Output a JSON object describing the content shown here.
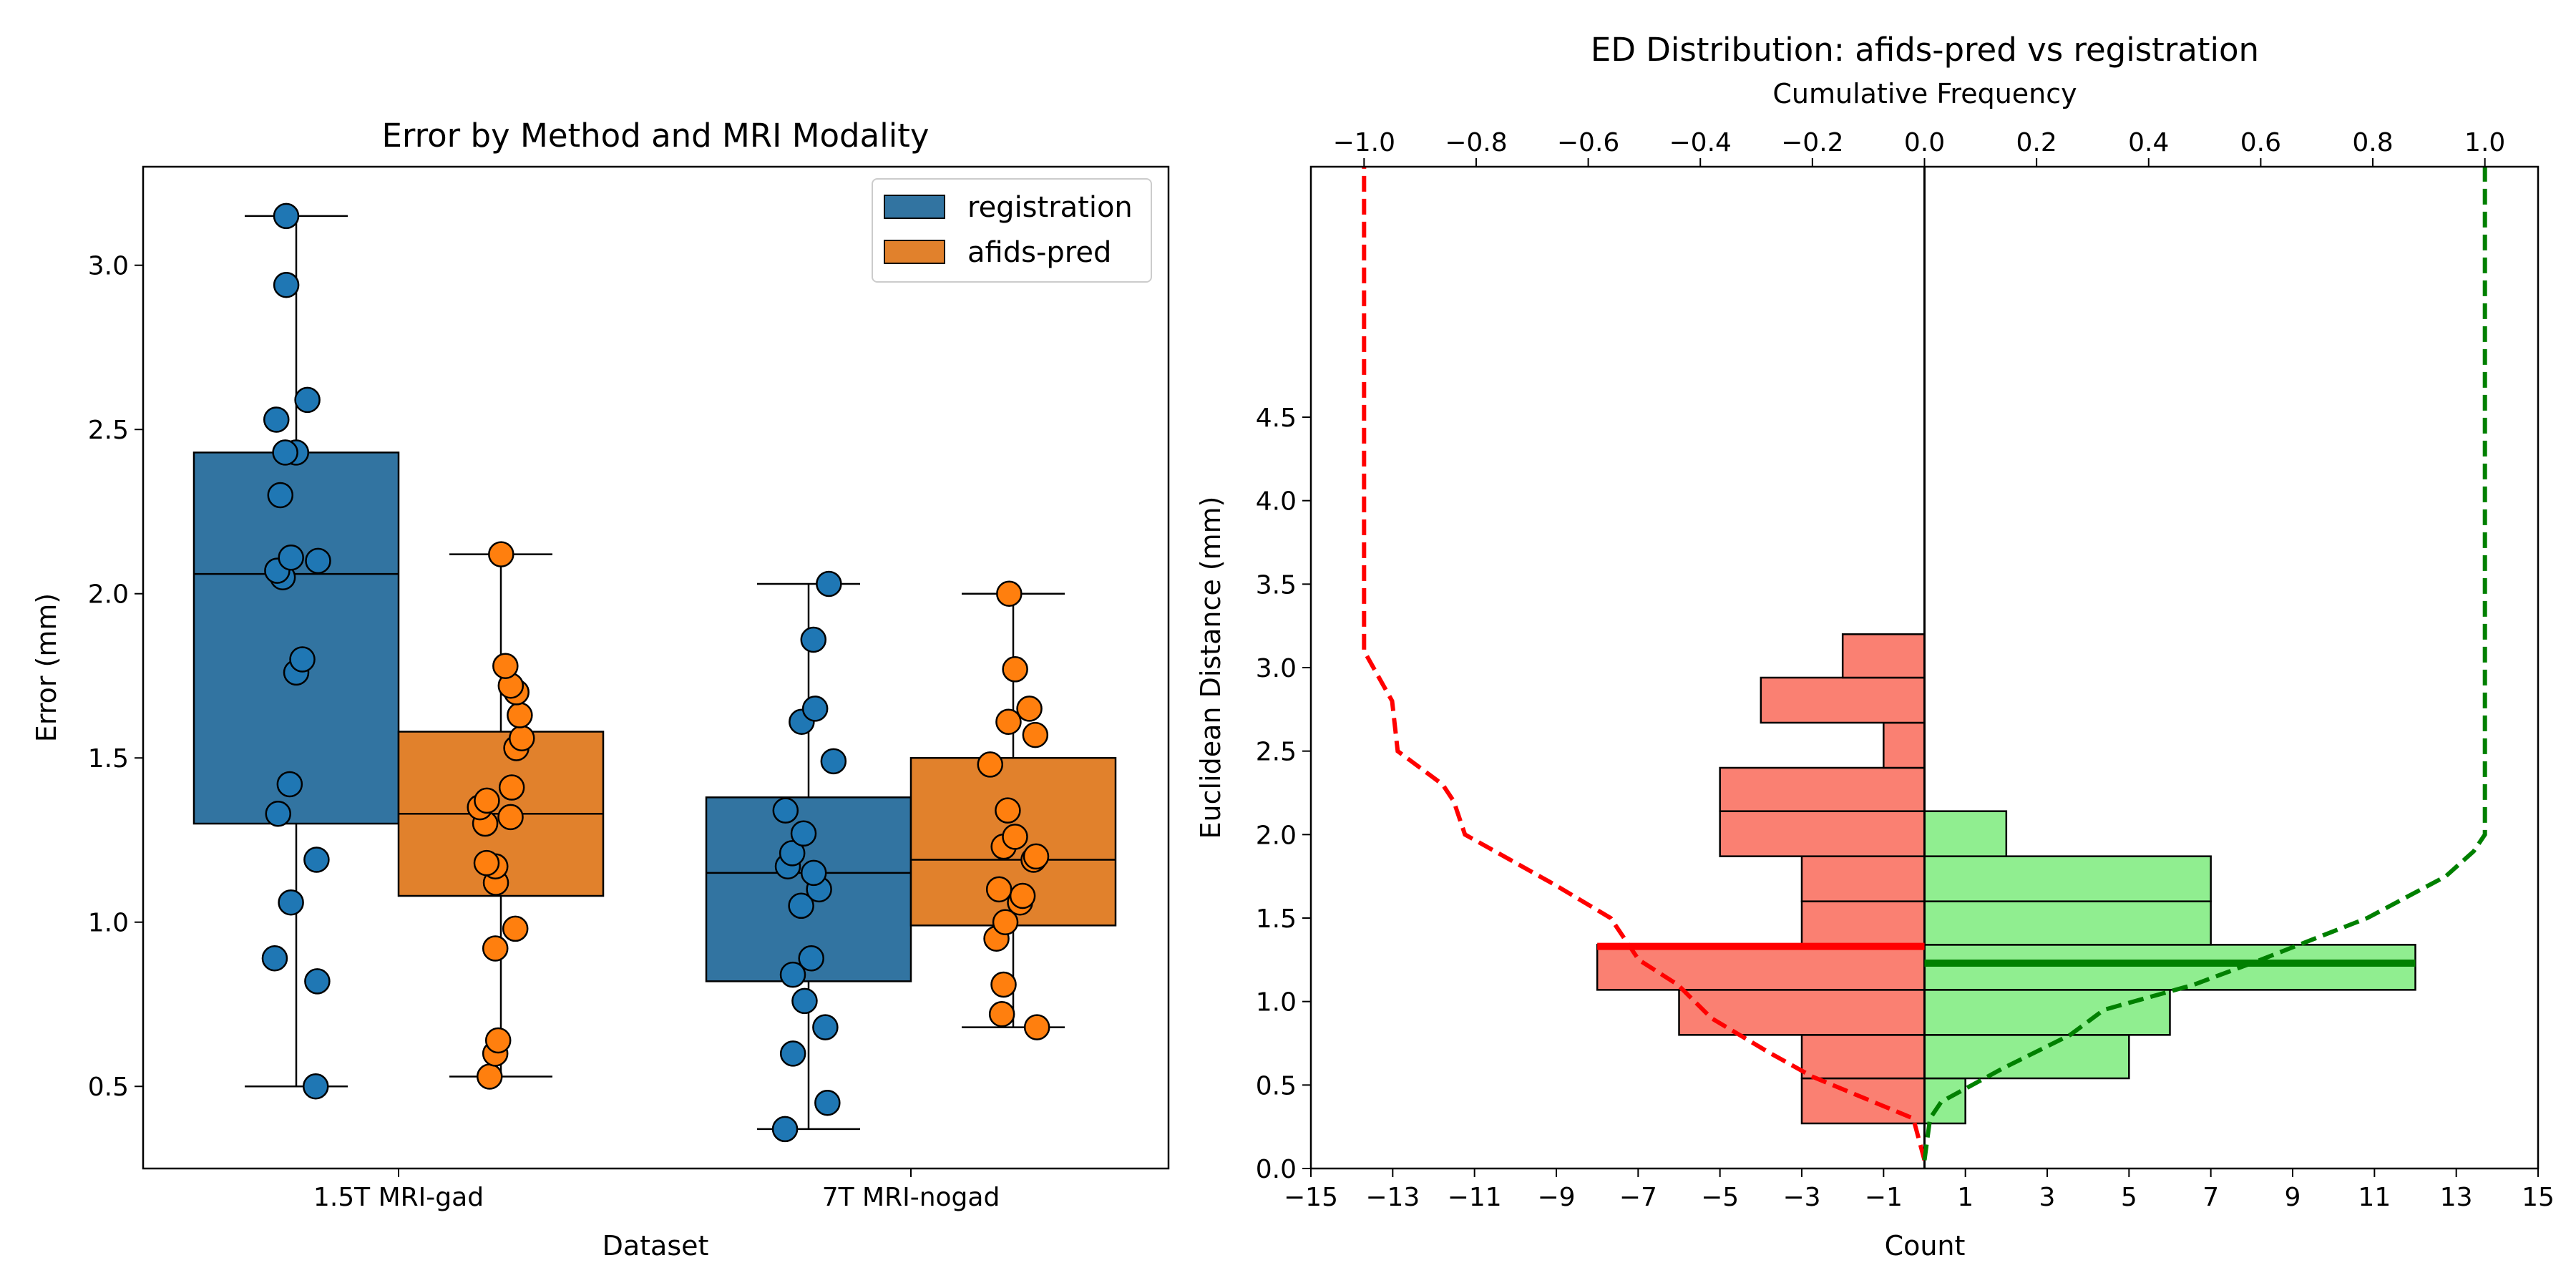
{
  "chart_data": [
    {
      "type": "box",
      "title": "Error by Method and MRI Modality",
      "xlabel": "Dataset",
      "ylabel": "Error (mm)",
      "ylim": [
        0.25,
        3.3
      ],
      "yticks": [
        0.5,
        1.0,
        1.5,
        2.0,
        2.5,
        3.0
      ],
      "ytick_labels": [
        "0.5",
        "1.0",
        "1.5",
        "2.0",
        "2.5",
        "3.0"
      ],
      "categories": [
        "1.5T MRI-gad",
        "7T MRI-nogad"
      ],
      "legend_position": "top-right",
      "series": [
        {
          "name": "registration",
          "color": "#3274a1",
          "point_color": "#1f77b4",
          "boxes": [
            {
              "whisker_low": 0.5,
              "q1": 1.3,
              "median": 2.06,
              "q3": 2.43,
              "whisker_high": 3.15
            },
            {
              "whisker_low": 0.37,
              "q1": 0.82,
              "median": 1.15,
              "q3": 1.38,
              "whisker_high": 2.03
            }
          ],
          "points": [
            [
              0.5,
              0.82,
              0.89,
              1.06,
              1.19,
              1.33,
              1.42,
              1.76,
              1.8,
              2.05,
              2.07,
              2.1,
              2.11,
              2.3,
              2.43,
              2.43,
              2.53,
              2.59,
              2.94,
              3.15
            ],
            [
              0.37,
              0.45,
              0.6,
              0.68,
              0.76,
              0.84,
              0.89,
              1.05,
              1.1,
              1.15,
              1.17,
              1.21,
              1.27,
              1.34,
              1.49,
              1.61,
              1.65,
              1.86,
              2.03
            ]
          ]
        },
        {
          "name": "afids-pred",
          "color": "#e1812c",
          "point_color": "#ff7f0e",
          "boxes": [
            {
              "whisker_low": 0.53,
              "q1": 1.08,
              "median": 1.33,
              "q3": 1.58,
              "whisker_high": 2.12
            },
            {
              "whisker_low": 0.68,
              "q1": 0.99,
              "median": 1.19,
              "q3": 1.5,
              "whisker_high": 2.0
            }
          ],
          "points": [
            [
              0.53,
              0.6,
              0.64,
              0.92,
              0.98,
              1.12,
              1.17,
              1.18,
              1.3,
              1.32,
              1.35,
              1.37,
              1.41,
              1.53,
              1.56,
              1.63,
              1.7,
              1.72,
              1.78,
              2.12
            ],
            [
              0.68,
              0.72,
              0.81,
              0.95,
              1.0,
              1.06,
              1.08,
              1.1,
              1.19,
              1.2,
              1.23,
              1.26,
              1.34,
              1.48,
              1.57,
              1.61,
              1.65,
              1.77,
              2.0
            ]
          ]
        }
      ]
    },
    {
      "type": "histogram",
      "title": "ED Distribution: afids-pred vs registration",
      "xlabel": "Count",
      "ylabel": "Euclidean Distance (mm)",
      "top_xlabel": "Cumulative Frequency",
      "xlim": [
        -15,
        15
      ],
      "ylim": [
        0,
        6.0
      ],
      "xticks": [
        -15,
        -13,
        -11,
        -9,
        -7,
        -5,
        -3,
        -1,
        1,
        3,
        5,
        7,
        9,
        11,
        13,
        15
      ],
      "xtick_labels": [
        "−15",
        "−13",
        "−11",
        "−9",
        "−7",
        "−5",
        "−3",
        "−1",
        "1",
        "3",
        "5",
        "7",
        "9",
        "11",
        "13",
        "15"
      ],
      "yticks": [
        0.0,
        0.5,
        1.0,
        1.5,
        2.0,
        2.5,
        3.0,
        3.5,
        4.0,
        4.5
      ],
      "ytick_labels": [
        "0.0",
        "0.5",
        "1.0",
        "1.5",
        "2.0",
        "2.5",
        "3.0",
        "3.5",
        "4.0",
        "4.5"
      ],
      "top_xticks": [
        -1.0,
        -0.8,
        -0.6,
        -0.4,
        -0.2,
        0.0,
        0.2,
        0.4,
        0.6,
        0.8,
        1.0
      ],
      "top_xtick_labels": [
        "−1.0",
        "−0.8",
        "−0.6",
        "−0.4",
        "−0.2",
        "0.0",
        "0.2",
        "0.4",
        "0.6",
        "0.8",
        "1.0"
      ],
      "registration_bins": [
        {
          "y0": 0.27,
          "y1": 0.54,
          "count": 3
        },
        {
          "y0": 0.54,
          "y1": 0.8,
          "count": 3
        },
        {
          "y0": 0.8,
          "y1": 1.07,
          "count": 6
        },
        {
          "y0": 1.07,
          "y1": 1.34,
          "count": 8
        },
        {
          "y0": 1.34,
          "y1": 1.6,
          "count": 3
        },
        {
          "y0": 1.6,
          "y1": 1.87,
          "count": 3
        },
        {
          "y0": 1.87,
          "y1": 2.14,
          "count": 5
        },
        {
          "y0": 2.14,
          "y1": 2.4,
          "count": 5
        },
        {
          "y0": 2.4,
          "y1": 2.67,
          "count": 1
        },
        {
          "y0": 2.67,
          "y1": 2.94,
          "count": 4
        },
        {
          "y0": 2.94,
          "y1": 3.2,
          "count": 2
        }
      ],
      "afids_bins": [
        {
          "y0": 0.27,
          "y1": 0.54,
          "count": 1
        },
        {
          "y0": 0.54,
          "y1": 0.8,
          "count": 5
        },
        {
          "y0": 0.8,
          "y1": 1.07,
          "count": 6
        },
        {
          "y0": 1.07,
          "y1": 1.34,
          "count": 12
        },
        {
          "y0": 1.34,
          "y1": 1.6,
          "count": 7
        },
        {
          "y0": 1.6,
          "y1": 1.87,
          "count": 7
        },
        {
          "y0": 1.87,
          "y1": 2.14,
          "count": 2
        }
      ],
      "registration_median": 1.33,
      "afids_median": 1.23,
      "registration_color": "#fa8072",
      "afids_color": "#90ee90",
      "registration_line_color": "#ff0000",
      "afids_line_color": "#008000",
      "registration_cdf": [
        [
          0.05,
          0.0
        ],
        [
          0.3,
          -0.02
        ],
        [
          0.55,
          -0.2
        ],
        [
          0.7,
          -0.28
        ],
        [
          0.9,
          -0.38
        ],
        [
          1.1,
          -0.44
        ],
        [
          1.25,
          -0.51
        ],
        [
          1.5,
          -0.56
        ],
        [
          1.7,
          -0.66
        ],
        [
          2.0,
          -0.82
        ],
        [
          2.2,
          -0.84
        ],
        [
          2.3,
          -0.86
        ],
        [
          2.5,
          -0.94
        ],
        [
          2.8,
          -0.95
        ],
        [
          3.1,
          -1.0
        ],
        [
          5.0,
          -1.0
        ],
        [
          6.0,
          -1.0
        ]
      ],
      "afids_cdf": [
        [
          0.05,
          0.0
        ],
        [
          0.3,
          0.01
        ],
        [
          0.4,
          0.03
        ],
        [
          0.6,
          0.14
        ],
        [
          0.8,
          0.26
        ],
        [
          0.95,
          0.32
        ],
        [
          1.1,
          0.48
        ],
        [
          1.25,
          0.6
        ],
        [
          1.5,
          0.79
        ],
        [
          1.75,
          0.93
        ],
        [
          1.9,
          0.98
        ],
        [
          2.0,
          1.0
        ],
        [
          3.0,
          1.0
        ],
        [
          5.0,
          1.0
        ],
        [
          6.0,
          1.0
        ]
      ]
    }
  ]
}
